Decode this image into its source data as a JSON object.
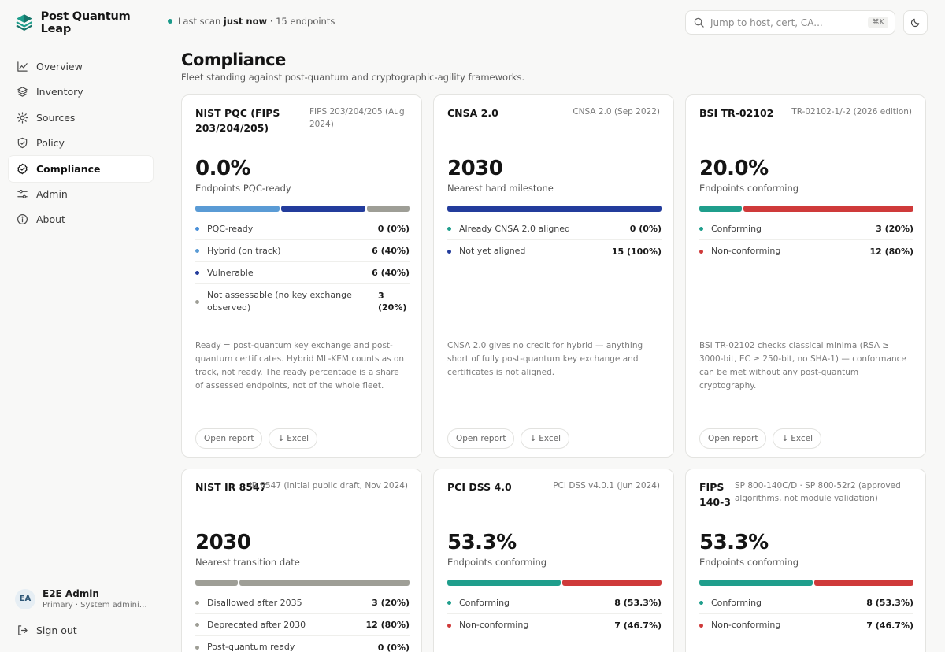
{
  "app": {
    "name": "Post Quantum Leap"
  },
  "nav": [
    {
      "label": "Overview",
      "icon": "chart-line-icon"
    },
    {
      "label": "Inventory",
      "icon": "layers-icon"
    },
    {
      "label": "Sources",
      "icon": "radar-icon"
    },
    {
      "label": "Policy",
      "icon": "shield-icon"
    },
    {
      "label": "Compliance",
      "icon": "badge-check-icon",
      "active": true
    },
    {
      "label": "Admin",
      "icon": "sliders-icon"
    },
    {
      "label": "About",
      "icon": "info-icon"
    }
  ],
  "user": {
    "initials": "EA",
    "name": "E2E Admin",
    "role": "Primary · System administrator"
  },
  "signout_label": "Sign out",
  "scan": {
    "prefix": "Last scan",
    "when": "just now",
    "suffix": "· 15 endpoints"
  },
  "search": {
    "placeholder": "Jump to host, cert, CA...",
    "shortcut": "⌘K"
  },
  "page": {
    "title": "Compliance",
    "subtitle": "Fleet standing against post-quantum and cryptographic-agility frameworks."
  },
  "colors": {
    "light_blue": "#5a9bd5",
    "navy": "#233c9c",
    "gray": "#9e9e96",
    "teal": "#1f9e8c",
    "red": "#cf3a3a"
  },
  "cards": [
    {
      "title": "NIST PQC (FIPS 203/204/205)",
      "ref": "FIPS 203/204/205 (Aug 2024)",
      "metric": "0.0%",
      "metric_label": "Endpoints PQC-ready",
      "rows": [
        {
          "label": "PQC-ready",
          "value": "0 (0%)",
          "color": "#4a90d9"
        },
        {
          "label": "Hybrid (on track)",
          "value": "6 (40%)",
          "color": "#5a9bd5"
        },
        {
          "label": "Vulnerable",
          "value": "6 (40%)",
          "color": "#233c9c"
        },
        {
          "label": "Not assessable (no key exchange observed)",
          "value": "3 (20%)",
          "color": "#9e9e96"
        }
      ],
      "note": "Ready = post-quantum key exchange and post-quantum certificates. Hybrid ML-KEM counts as on track, not ready. The ready percentage is a share of assessed endpoints, not of the whole fleet.",
      "open_label": "Open report",
      "excel_label": "Excel"
    },
    {
      "title": "CNSA 2.0",
      "ref": "CNSA 2.0 (Sep 2022)",
      "metric": "2030",
      "metric_label": "Nearest hard milestone",
      "rows": [
        {
          "label": "Already CNSA 2.0 aligned",
          "value": "0 (0%)",
          "color": "#1f9e8c"
        },
        {
          "label": "Not yet aligned",
          "value": "15 (100%)",
          "color": "#233c9c"
        }
      ],
      "note": "CNSA 2.0 gives no credit for hybrid — anything short of fully post-quantum key exchange and certificates is not aligned.",
      "open_label": "Open report",
      "excel_label": "Excel"
    },
    {
      "title": "BSI TR-02102",
      "ref": "TR-02102-1/-2 (2026 edition)",
      "metric": "20.0%",
      "metric_label": "Endpoints conforming",
      "rows": [
        {
          "label": "Conforming",
          "value": "3 (20%)",
          "color": "#1f9e8c"
        },
        {
          "label": "Non-conforming",
          "value": "12 (80%)",
          "color": "#cf3a3a"
        }
      ],
      "note": "BSI TR-02102 checks classical minima (RSA ≥ 3000-bit, EC ≥ 250-bit, no SHA-1) — conformance can be met without any post-quantum cryptography.",
      "open_label": "Open report",
      "excel_label": "Excel"
    },
    {
      "title": "NIST IR 8547",
      "ref": "IR 8547 (initial public draft, Nov 2024)",
      "metric": "2030",
      "metric_label": "Nearest transition date",
      "rows": [
        {
          "label": "Disallowed after 2035",
          "value": "3 (20%)",
          "color": "#9e9e96"
        },
        {
          "label": "Deprecated after 2030",
          "value": "12 (80%)",
          "color": "#9e9e96"
        },
        {
          "label": "Post-quantum ready",
          "value": "0 (0%)",
          "color": "#9e9e96"
        }
      ]
    },
    {
      "title": "PCI DSS 4.0",
      "ref": "PCI DSS v4.0.1 (Jun 2024)",
      "metric": "53.3%",
      "metric_label": "Endpoints conforming",
      "rows": [
        {
          "label": "Conforming",
          "value": "8 (53.3%)",
          "color": "#1f9e8c"
        },
        {
          "label": "Non-conforming",
          "value": "7 (46.7%)",
          "color": "#cf3a3a"
        }
      ]
    },
    {
      "title": "FIPS 140-3",
      "ref": "SP 800-140C/D · SP 800-52r2 (approved algorithms, not module validation)",
      "metric": "53.3%",
      "metric_label": "Endpoints conforming",
      "rows": [
        {
          "label": "Conforming",
          "value": "8 (53.3%)",
          "color": "#1f9e8c"
        },
        {
          "label": "Non-conforming",
          "value": "7 (46.7%)",
          "color": "#cf3a3a"
        }
      ]
    }
  ],
  "bars": [
    [
      {
        "frac": 0.4,
        "color": "#5a9bd5"
      },
      {
        "frac": 0.4,
        "color": "#233c9c"
      },
      {
        "frac": 0.2,
        "color": "#9e9e96"
      }
    ],
    [
      {
        "frac": 1.0,
        "color": "#233c9c"
      }
    ],
    [
      {
        "frac": 0.2,
        "color": "#1f9e8c"
      },
      {
        "frac": 0.8,
        "color": "#cf3a3a"
      }
    ],
    [
      {
        "frac": 0.2,
        "color": "#9e9e96"
      },
      {
        "frac": 0.8,
        "color": "#9e9e96"
      }
    ],
    [
      {
        "frac": 0.533,
        "color": "#1f9e8c"
      },
      {
        "frac": 0.467,
        "color": "#cf3a3a"
      }
    ],
    [
      {
        "frac": 0.533,
        "color": "#1f9e8c"
      },
      {
        "frac": 0.467,
        "color": "#cf3a3a"
      }
    ]
  ]
}
